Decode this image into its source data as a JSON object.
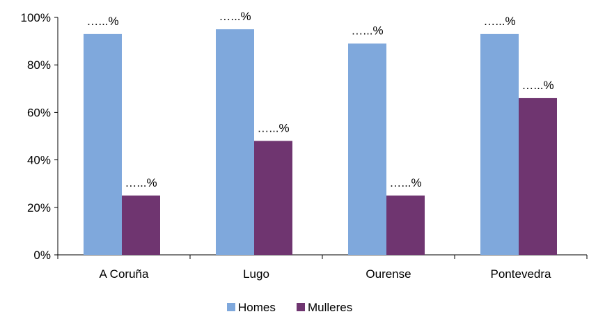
{
  "chart_data": {
    "type": "bar",
    "categories": [
      "A Coruña",
      "Lugo",
      "Ourense",
      "Pontevedra"
    ],
    "series": [
      {
        "name": "Homes",
        "values": [
          93,
          95,
          89,
          93
        ],
        "color": "#7FA8DC",
        "labels": [
          "…...%",
          "…...%",
          "…...%",
          "…...%"
        ]
      },
      {
        "name": "Mulleres",
        "values": [
          25,
          48,
          25,
          66
        ],
        "color": "#6F3570",
        "labels": [
          "…...%",
          "…...%",
          "…...%",
          "…...%"
        ]
      }
    ],
    "ylim": [
      0,
      100
    ],
    "yticks": [
      "0%",
      "20%",
      "40%",
      "60%",
      "80%",
      "100%"
    ],
    "grid": false,
    "legend_position": "bottom"
  }
}
